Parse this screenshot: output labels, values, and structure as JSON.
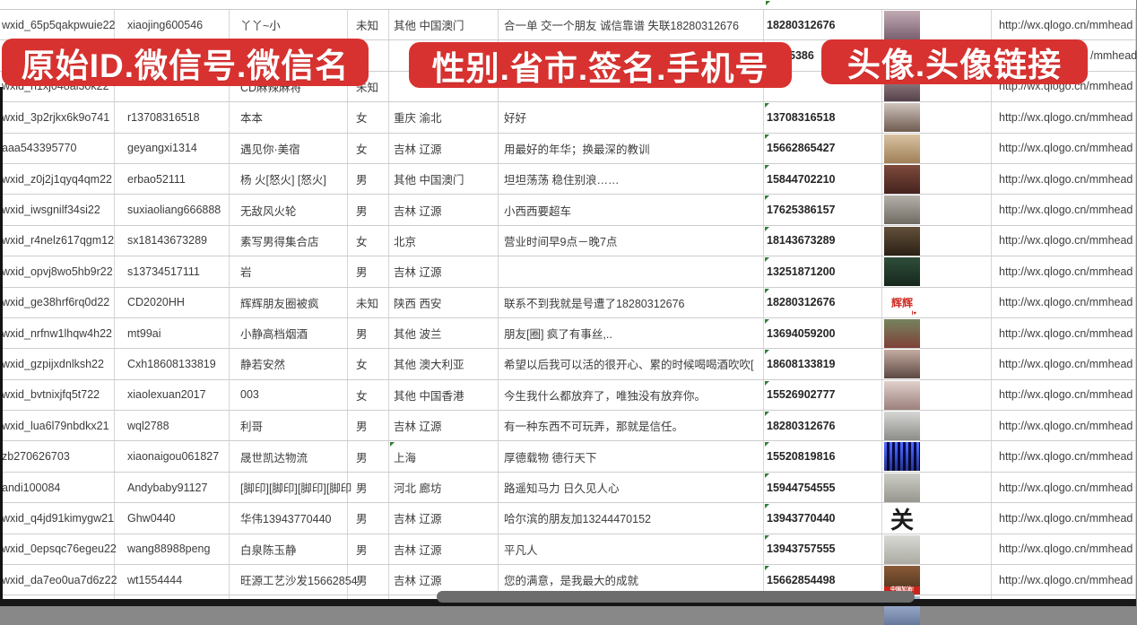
{
  "banners": [
    {
      "label": "原始ID.微信号.微信名"
    },
    {
      "label": "性别.省市.签名.手机号"
    },
    {
      "label": "头像.头像链接"
    }
  ],
  "colors": {
    "banner_red": "#d83230",
    "gridline": "#cdcdcd",
    "marker_green": "#2f8032",
    "scroll_thumb": "#6d6d6d",
    "bottom_bar": "#171717"
  },
  "rows": [
    {
      "id": "wxid_65p5qakpwuie22",
      "account": "xiaojing600546",
      "name": "丫丫~小",
      "gender": "未知",
      "region": "其他 中国澳门",
      "signature": "合一单 交一个朋友 诚信靠谱 失联18280312676",
      "phone": "18280312676",
      "link": "http://wx.qlogo.cn/mmhead",
      "phone_marker": false,
      "region_marker": false,
      "fragment": false,
      "avatar": {
        "kind": "photo",
        "label": "woman-portrait-photo",
        "c1": "#c2aab4",
        "c2": "#7a6070"
      }
    },
    {
      "id": "",
      "account": "",
      "name": "",
      "gender": "",
      "region": "",
      "signature": "",
      "phone": "5386",
      "link": "/mmhead",
      "phone_marker": false,
      "region_marker": false,
      "fragment": true,
      "avatar": null
    },
    {
      "id": "wxid_h1xj048al3ok22",
      "account": "",
      "name": "CD麻辣麻将",
      "gender": "未知",
      "region": "",
      "signature": "",
      "phone": "",
      "link": "http://wx.qlogo.cn/mmhead",
      "phone_marker": false,
      "region_marker": false,
      "fragment": false,
      "avatar": {
        "kind": "photo",
        "label": "woman-portrait-photo",
        "c1": "#a89096",
        "c2": "#55424a"
      }
    },
    {
      "id": "wxid_3p2rjkx6k9o741",
      "account": "r13708316518",
      "name": "本本",
      "gender": "女",
      "region": "重庆 渝北",
      "signature": "好好",
      "phone": "13708316518",
      "link": "http://wx.qlogo.cn/mmhead",
      "phone_marker": true,
      "region_marker": false,
      "fragment": false,
      "avatar": {
        "kind": "photo",
        "label": "woman-long-hair-photo",
        "c1": "#cfc4bc",
        "c2": "#6e5a50"
      }
    },
    {
      "id": "aaa543395770",
      "account": "geyangxi1314",
      "name": "遇见你·美宿",
      "gender": "女",
      "region": "吉林 辽源",
      "signature": "用最好的年华；换最深的教训",
      "phone": "15662865427",
      "link": "http://wx.qlogo.cn/mmhead",
      "phone_marker": true,
      "region_marker": false,
      "fragment": false,
      "avatar": {
        "kind": "photo",
        "label": "beige-scene-photo",
        "c1": "#d9c2a2",
        "c2": "#a08057"
      }
    },
    {
      "id": "wxid_z0j2j1qyq4qm22",
      "account": "erbao52111",
      "name": "杨 火[怒火] [怒火]",
      "gender": "男",
      "region": "其他 中国澳门",
      "signature": "坦坦荡荡 稳住别浪……",
      "phone": "15844702210",
      "link": "http://wx.qlogo.cn/mmhead",
      "phone_marker": true,
      "region_marker": false,
      "fragment": false,
      "avatar": {
        "kind": "photo",
        "label": "dark-red-group-photo",
        "c1": "#7e4a3c",
        "c2": "#45231e"
      }
    },
    {
      "id": "wxid_iwsgnilf34si22",
      "account": "suxiaoliang666888",
      "name": "无敌风火轮",
      "gender": "男",
      "region": "吉林 辽源",
      "signature": "小西西要超车",
      "phone": "17625386157",
      "link": "http://wx.qlogo.cn/mmhead",
      "phone_marker": true,
      "region_marker": false,
      "fragment": false,
      "avatar": {
        "kind": "photo",
        "label": "child-in-car-photo",
        "c1": "#b5b1aa",
        "c2": "#6f6a62"
      }
    },
    {
      "id": "wxid_r4nelz617qgm12",
      "account": "sx18143673289",
      "name": "素写男得集合店",
      "gender": "女",
      "region": "北京",
      "signature": "营业时间早9点－晚7点",
      "phone": "18143673289",
      "link": "http://wx.qlogo.cn/mmhead",
      "phone_marker": true,
      "region_marker": false,
      "fragment": false,
      "avatar": {
        "kind": "photo",
        "label": "dark-storefront-photo",
        "c1": "#63503a",
        "c2": "#2b2015"
      }
    },
    {
      "id": "wxid_opvj8wo5hb9r22",
      "account": "s13734517111",
      "name": "岩",
      "gender": "男",
      "region": "吉林 辽源",
      "signature": "",
      "phone": "13251871200",
      "link": "http://wx.qlogo.cn/mmhead",
      "phone_marker": true,
      "region_marker": false,
      "fragment": false,
      "avatar": {
        "kind": "photo",
        "label": "dark-green-road-photo",
        "c1": "#2f4d3a",
        "c2": "#16281c"
      }
    },
    {
      "id": "wxid_ge38hrf6rq0d22",
      "account": "CD2020HH",
      "name": "辉辉朋友圈被疯",
      "gender": "未知",
      "region": "陕西 西安",
      "signature": "联系不到我就是号遭了18280312676",
      "phone": "18280312676",
      "link": "http://wx.qlogo.cn/mmhead",
      "phone_marker": true,
      "region_marker": false,
      "fragment": false,
      "avatar": {
        "kind": "text",
        "label": "red-text-on-white",
        "text": "辉辉",
        "color": "#d03028",
        "size": 12,
        "sub": "I♥"
      }
    },
    {
      "id": "wxid_nrfnw1lhqw4h22",
      "account": "mt99ai",
      "name": "小静高档烟酒",
      "gender": "男",
      "region": "其他 波兰",
      "signature": "朋友[圈] 疯了有事丝,..",
      "phone": "13694059200",
      "link": "http://wx.qlogo.cn/mmhead",
      "phone_marker": true,
      "region_marker": false,
      "fragment": false,
      "avatar": {
        "kind": "photo",
        "label": "woman-sunglasses-photo",
        "c1": "#75845f",
        "c2": "#7f4038"
      }
    },
    {
      "id": "wxid_gzpijxdnlksh22",
      "account": "Cxh18608133819",
      "name": "静若安然",
      "gender": "女",
      "region": "其他 澳大利亚",
      "signature": "希望以后我可以活的很开心、累的时候喝喝酒吹吹[",
      "phone": "18608133819",
      "link": "http://wx.qlogo.cn/mmhead",
      "phone_marker": true,
      "region_marker": false,
      "fragment": false,
      "avatar": {
        "kind": "photo",
        "label": "woman-selfie-photo",
        "c1": "#c4aca1",
        "c2": "#5c4842"
      }
    },
    {
      "id": "wxid_bvtnixjfq5t722",
      "account": "xiaolexuan2017",
      "name": "003",
      "gender": "女",
      "region": "其他 中国香港",
      "signature": "今生我什么都放弃了，唯独没有放弃你。",
      "phone": "15526902777",
      "link": "http://wx.qlogo.cn/mmhead",
      "phone_marker": true,
      "region_marker": false,
      "fragment": false,
      "avatar": {
        "kind": "photo",
        "label": "woman-selfie-light-photo",
        "c1": "#e0d0cc",
        "c2": "#9c807c"
      }
    },
    {
      "id": "wxid_lua6l79nbdkx21",
      "account": "wql2788",
      "name": "利哥",
      "gender": "男",
      "region": "吉林 辽源",
      "signature": "有一种东西不可玩弄，那就是信任。",
      "phone": "18280312676",
      "link": "http://wx.qlogo.cn/mmhead",
      "phone_marker": true,
      "region_marker": false,
      "fragment": false,
      "avatar": {
        "kind": "photo",
        "label": "man-white-cap-photo",
        "c1": "#d6d6d4",
        "c2": "#8c8c88"
      }
    },
    {
      "id": "zb270626703",
      "account": "xiaonaigou061827",
      "name": "晟世凯达物流",
      "gender": "男",
      "region": "上海",
      "signature": "厚德载物 德行天下",
      "phone": "15520819816",
      "link": "http://wx.qlogo.cn/mmhead",
      "phone_marker": true,
      "region_marker": true,
      "fragment": false,
      "avatar": {
        "kind": "qr",
        "label": "qr-code-blue-card",
        "c1": "#2c3c8c",
        "c2": "#141c4a"
      }
    },
    {
      "id": "andi100084",
      "account": "Andybaby91127",
      "name": "[脚印][脚印][脚印][脚印",
      "gender": "男",
      "region": "河北 廊坊",
      "signature": "路遥知马力 日久见人心",
      "phone": "15944754555",
      "link": "http://wx.qlogo.cn/mmhead",
      "phone_marker": true,
      "region_marker": false,
      "fragment": false,
      "avatar": {
        "kind": "photo",
        "label": "gray-beach-jump-photo",
        "c1": "#cdcdc7",
        "c2": "#97978f"
      }
    },
    {
      "id": "wxid_q4jd91kimygw21",
      "account": "Ghw0440",
      "name": "华伟13943770440",
      "gender": "男",
      "region": "吉林 辽源",
      "signature": "哈尔滨的朋友加13244470152",
      "phone": "13943770440",
      "link": "http://wx.qlogo.cn/mmhead",
      "phone_marker": true,
      "region_marker": false,
      "fragment": false,
      "avatar": {
        "kind": "text",
        "label": "black-calligraphy-on-white",
        "text": "关",
        "color": "#1b1b1b",
        "size": 26,
        "sub": ""
      }
    },
    {
      "id": "wxid_0epsqc76egeu22",
      "account": "wang88988peng",
      "name": "白泉陈玉静",
      "gender": "男",
      "region": "吉林 辽源",
      "signature": "平凡人",
      "phone": "13943757555",
      "link": "http://wx.qlogo.cn/mmhead",
      "phone_marker": true,
      "region_marker": false,
      "fragment": false,
      "avatar": {
        "kind": "photo",
        "label": "light-gray-photo",
        "c1": "#d9d9d5",
        "c2": "#ababa3"
      }
    },
    {
      "id": "wxid_da7eo0ua7d6z22",
      "account": "wt1554444",
      "name": "旺源工艺沙发15662854",
      "gender": "男",
      "region": "吉林 辽源",
      "signature": "您的满意，是我最大的成就",
      "phone": "15662854498",
      "link": "http://wx.qlogo.cn/mmhead",
      "phone_marker": true,
      "region_marker": false,
      "fragment": false,
      "avatar": {
        "kind": "photo",
        "label": "brown-sofa-photo",
        "c1": "#8a5a38",
        "c2": "#49301c",
        "strip_text": "中国加油!"
      }
    },
    {
      "id": "",
      "account": "",
      "name": "",
      "gender": "",
      "region": "",
      "signature": "",
      "phone": "",
      "link": "",
      "phone_marker": true,
      "region_marker": false,
      "fragment": false,
      "partial": true,
      "avatar": {
        "kind": "photo",
        "label": "blue-cartoon-photo",
        "c1": "#aebedd",
        "c2": "#67789b"
      }
    }
  ]
}
